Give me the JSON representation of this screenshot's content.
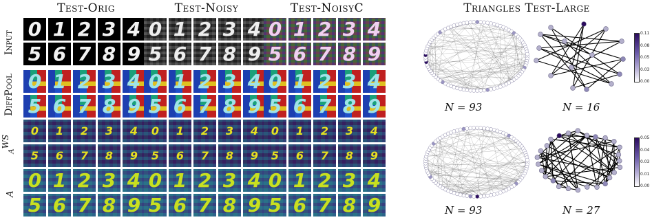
{
  "mnist_panel": {
    "columns": [
      "Test-Orig",
      "Test-Noisy",
      "Test-NoisyC"
    ],
    "rows": [
      {
        "label": "Input",
        "math": false
      },
      {
        "label": "DiffPool",
        "math": false
      },
      {
        "label": "α",
        "superscript": "WS",
        "math": true
      },
      {
        "label": "α",
        "math": true
      }
    ],
    "digits_top": [
      "0",
      "1",
      "2",
      "3",
      "4"
    ],
    "digits_bottom": [
      "5",
      "6",
      "7",
      "8",
      "9"
    ]
  },
  "triangles_panel": {
    "title": "Triangles Test-Large",
    "graphs": [
      {
        "n_label": "N = 93"
      },
      {
        "n_label": "N = 16"
      },
      {
        "n_label": "N = 93"
      },
      {
        "n_label": "N = 27"
      }
    ],
    "colorbars": [
      {
        "ticks": [
          "0.11",
          "0.08",
          "0.05",
          "0.03",
          "0.00"
        ]
      },
      {
        "ticks": [
          "0.05",
          "0.04",
          "0.03",
          "0.01",
          "0.00"
        ]
      }
    ]
  },
  "colors": {
    "node_fill": "#ffffff",
    "node_stroke": "#8a86a8",
    "node_highlight": "#2b0b5e",
    "edge": "#000000"
  }
}
